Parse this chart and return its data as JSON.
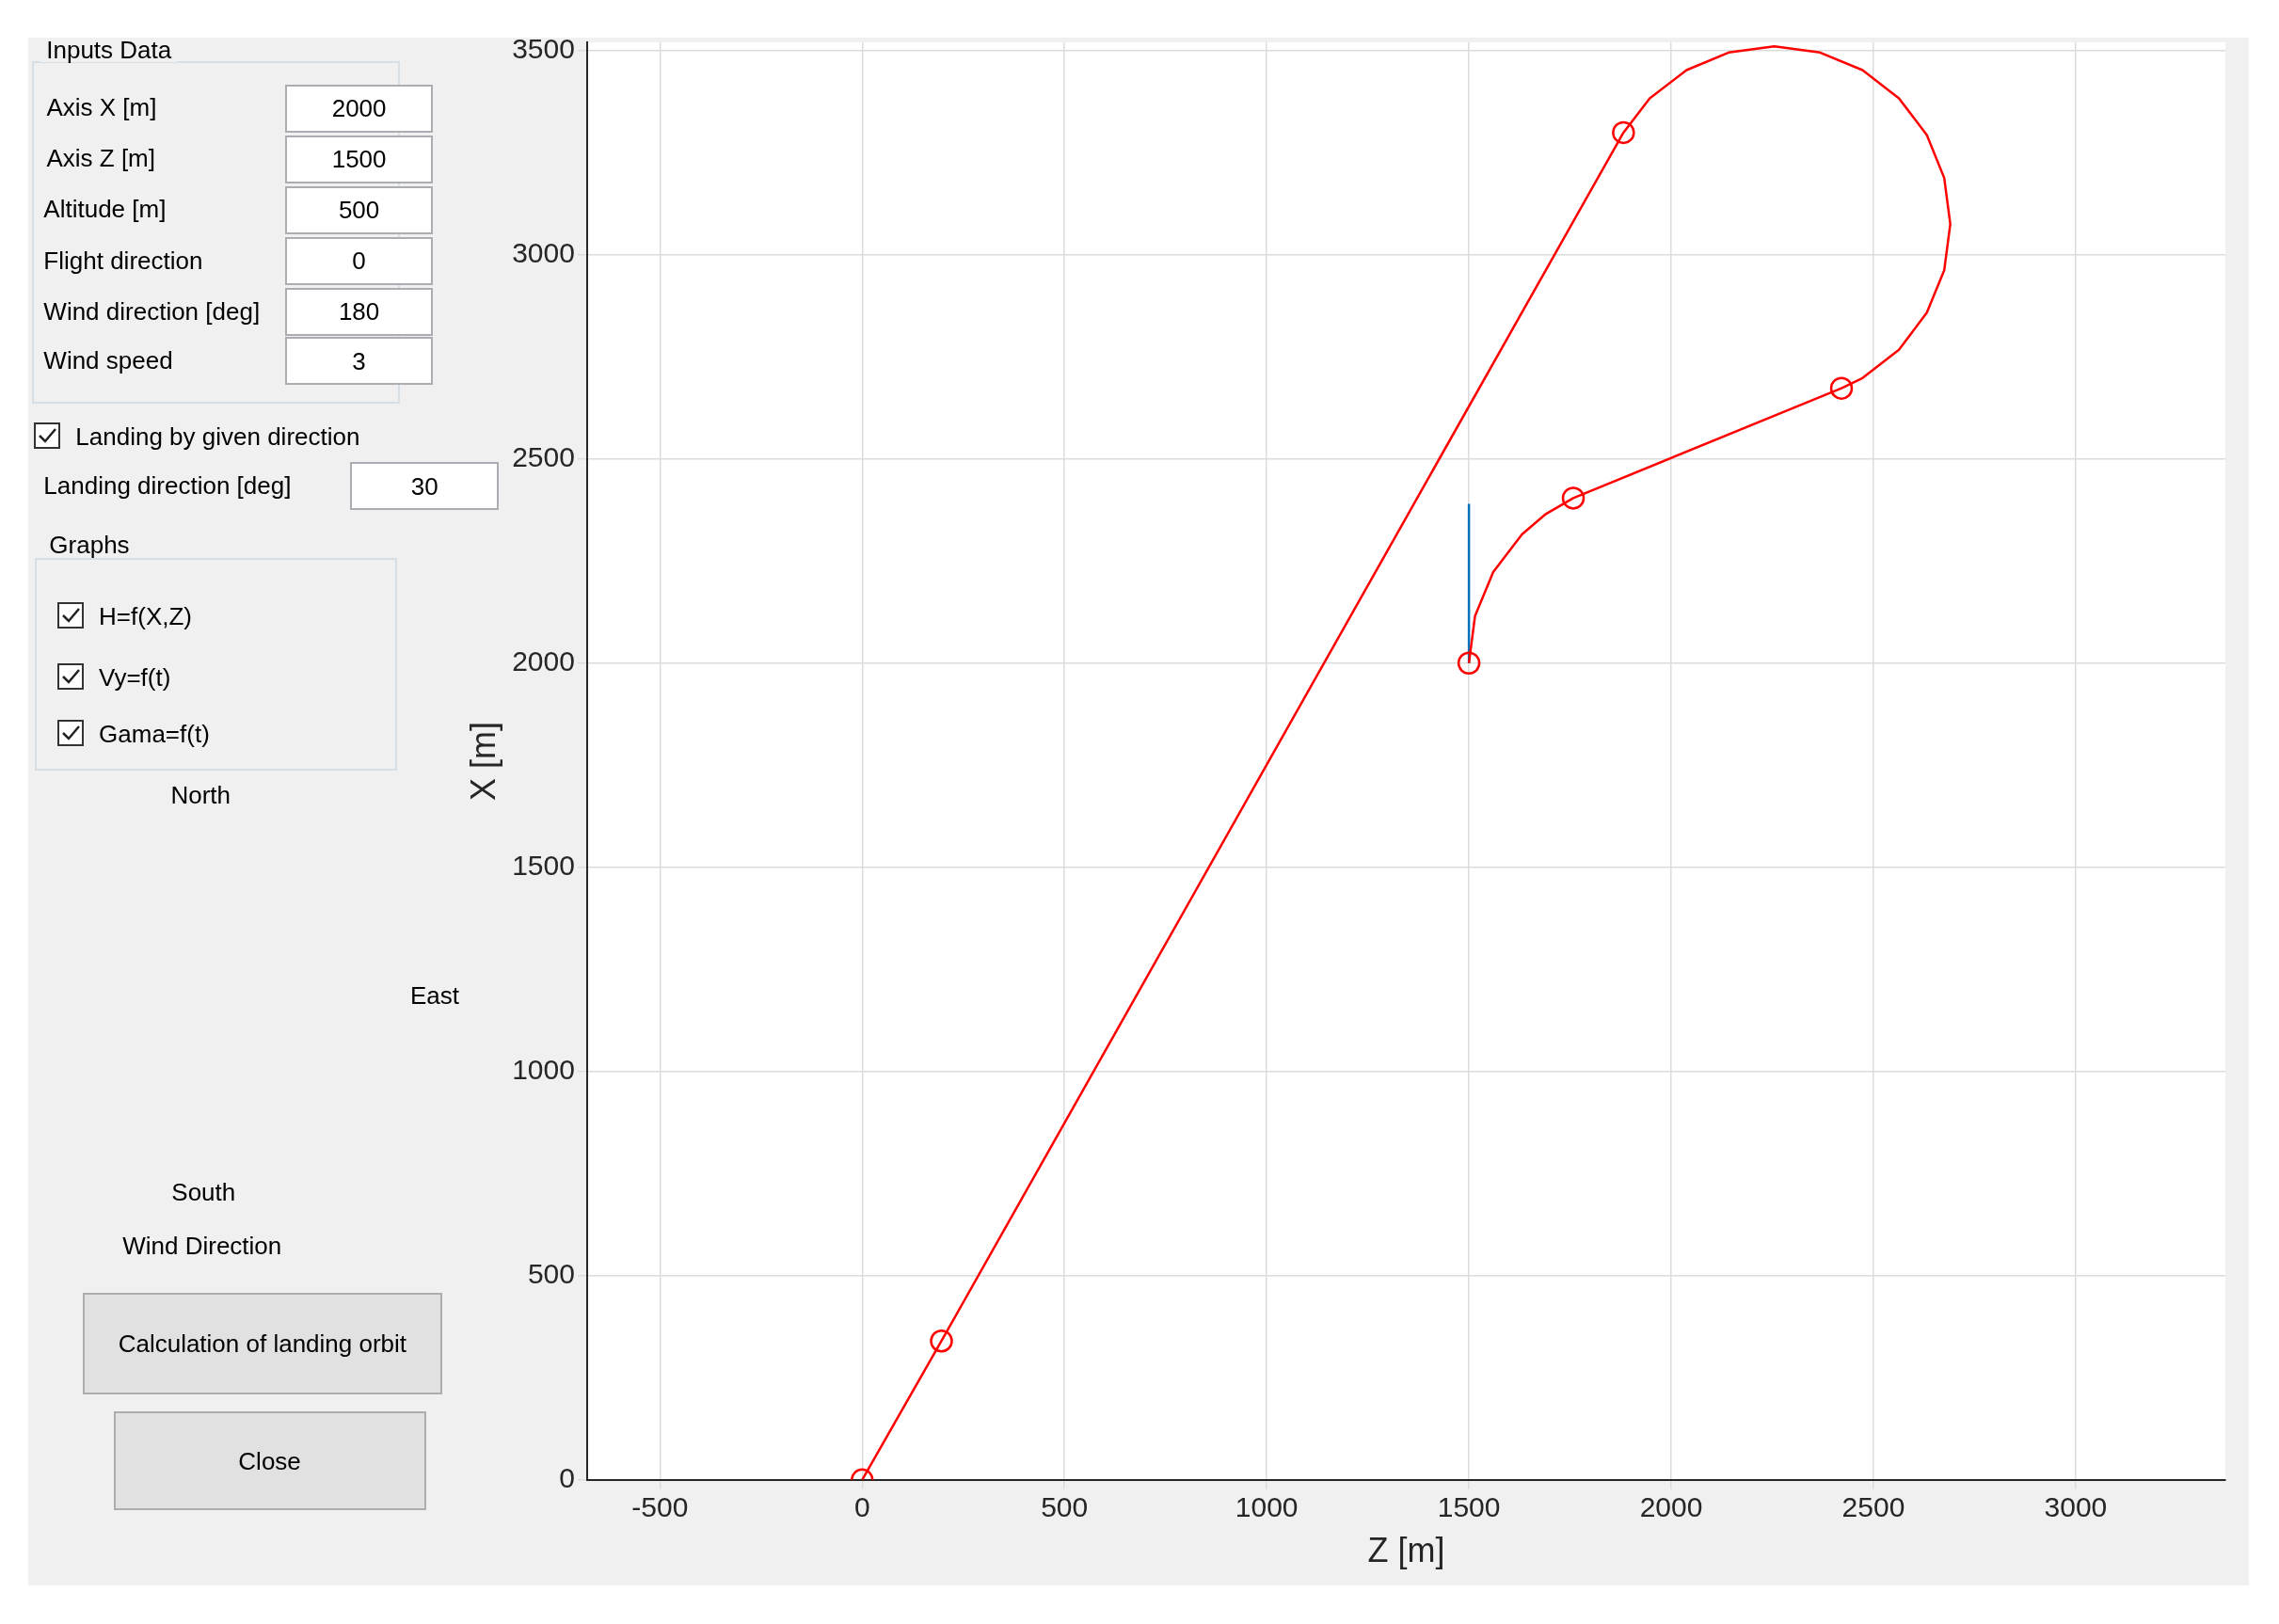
{
  "chart_data": {
    "type": "line",
    "xlabel": "Z [m]",
    "ylabel": "X [m]",
    "xlim": [
      -680,
      3370
    ],
    "ylim": [
      0,
      3520
    ],
    "xticks": [
      -500,
      0,
      500,
      1000,
      1500,
      2000,
      2500,
      3000
    ],
    "yticks": [
      0,
      500,
      1000,
      1500,
      2000,
      2500,
      3000,
      3500
    ],
    "grid": true,
    "line_style": "solid",
    "series": [
      {
        "type": "line",
        "color": "#ff0000",
        "marker": "none",
        "x": [
          0,
          196,
          1882,
          1947,
          2038,
          2142,
          2255,
          2368,
          2473,
          2563,
          2632,
          2675,
          2690,
          2675,
          2632,
          2563,
          2473,
          2421,
          1758,
          1690,
          1631,
          1560,
          1515,
          1500
        ],
        "values": [
          0,
          340,
          3299,
          3383,
          3452,
          3495,
          3510,
          3495,
          3452,
          3383,
          3293,
          3188,
          3075,
          2962,
          2858,
          2767,
          2698,
          2673,
          2404,
          2365,
          2315,
          2223,
          2115,
          2000
        ]
      },
      {
        "type": "scatter",
        "color": "#ff0000",
        "marker": "circle",
        "x": [
          0,
          196,
          1882,
          2421,
          1758,
          1500
        ],
        "values": [
          0,
          340,
          3299,
          2673,
          2404,
          2000
        ]
      },
      {
        "type": "line",
        "color": "#0072bd",
        "marker": "none",
        "x": [
          1500,
          1500
        ],
        "values": [
          2000,
          2390
        ]
      }
    ],
    "annotations": [
      "Inputs Data",
      "Axis X [m]",
      "2000",
      "Axis Z [m]",
      "1500",
      "Altitude [m]",
      "500",
      "Flight direction",
      "0",
      "Wind direction [deg]",
      "180",
      "Wind speed",
      "3",
      "Landing by given direction",
      "Landing direction [deg]",
      "30",
      "Graphs",
      "H=f(X,Z)",
      "Vy=f(t)",
      "Gama=f(t)",
      "North",
      "East",
      "South",
      "Wind Direction",
      "Calculation of landing orbit",
      "Close"
    ]
  }
}
